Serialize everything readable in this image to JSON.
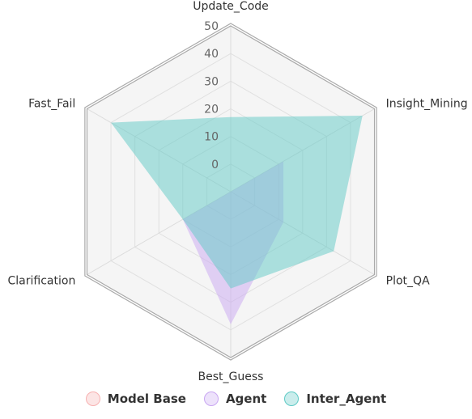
{
  "chart_data": {
    "type": "radar",
    "axes": [
      "Update_Code",
      "Insight_Mining",
      "Plot_QA",
      "Best_Guess",
      "Clarification",
      "Fast_Fail"
    ],
    "ticks": [
      "0",
      "10",
      "20",
      "30",
      "40",
      "50"
    ],
    "rmin": -10,
    "rmax": 50,
    "series": [
      {
        "name": "Model Base",
        "values": [
          -10,
          -10,
          -10,
          -10,
          -10,
          -10
        ],
        "color": "#f7b1b1"
      },
      {
        "name": "Agent",
        "values": [
          -10,
          12,
          12,
          38,
          10,
          -10
        ],
        "color": "#c9a7f2"
      },
      {
        "name": "Inter_Agent",
        "values": [
          17,
          45,
          33,
          25,
          10,
          40
        ],
        "color": "#5fcac5"
      }
    ],
    "legend_position": "bottom",
    "grid": true
  }
}
